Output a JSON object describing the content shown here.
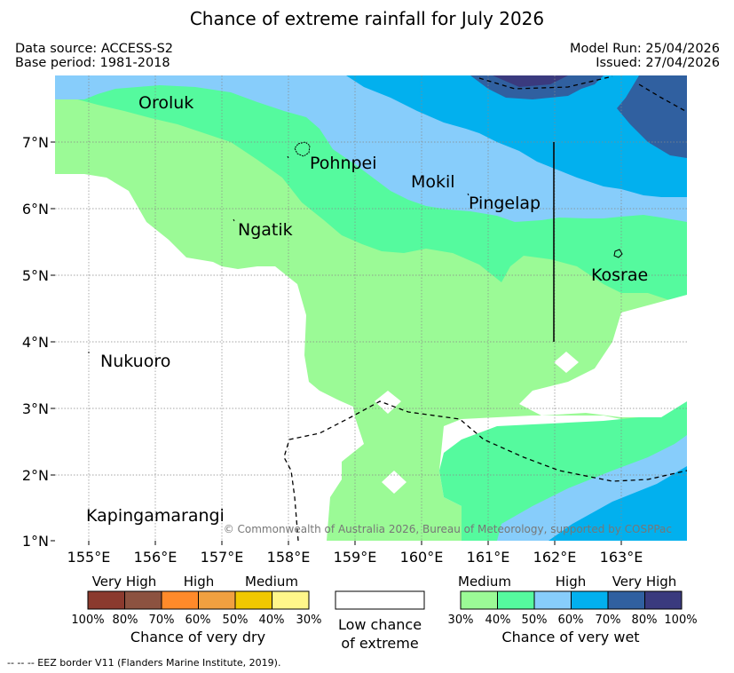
{
  "title": "Chance of extreme rainfall for July 2026",
  "info": {
    "data_source": "Data source: ACCESS-S2",
    "base_period": "Base period: 1981-2018",
    "model_run": "Model Run: 25/04/2026",
    "issued": "Issued: 27/04/2026"
  },
  "map": {
    "lon_ticks": [
      "155°E",
      "156°E",
      "157°E",
      "158°E",
      "159°E",
      "160°E",
      "161°E",
      "162°E",
      "163°E"
    ],
    "lat_ticks": [
      "7°N",
      "6°N",
      "5°N",
      "4°N",
      "3°N",
      "2°N",
      "1°N"
    ],
    "places": {
      "oroluk": "Oroluk",
      "pohnpei": "Pohnpei",
      "mokil": "Mokil",
      "pingelap": "Pingelap",
      "ngatik": "Ngatik",
      "kosrae": "Kosrae",
      "nukuoro": "Nukuoro",
      "kapingamarangi": "Kapingamarangi"
    },
    "copyright": "© Commonwealth of Australia 2026, Bureau of Meteorology, supported by COSPPac"
  },
  "legend": {
    "dry": {
      "groups": [
        "Very High",
        "High",
        "Medium"
      ],
      "ticks": [
        "100%",
        "80%",
        "70%",
        "60%",
        "50%",
        "40%",
        "30%"
      ],
      "caption": "Chance of very dry",
      "colors": [
        "#8b3a2e",
        "#8c5240",
        "#ff8a2a",
        "#f0a040",
        "#f0c800",
        "#fff68a"
      ]
    },
    "neutral": {
      "line1": "Low chance",
      "line2": "of extreme",
      "color": "#ffffff"
    },
    "wet": {
      "groups": [
        "Medium",
        "High",
        "Very High"
      ],
      "ticks": [
        "30%",
        "40%",
        "50%",
        "60%",
        "70%",
        "80%",
        "100%"
      ],
      "caption": "Chance of very wet",
      "colors": [
        "#9bfa96",
        "#55fa9e",
        "#87cdfb",
        "#02b0ee",
        "#3060a0",
        "#3a3a7e"
      ]
    }
  },
  "footer": {
    "eez_note": "--  --  -- EEZ border V11 (Flanders Marine Institute, 2019)."
  }
}
